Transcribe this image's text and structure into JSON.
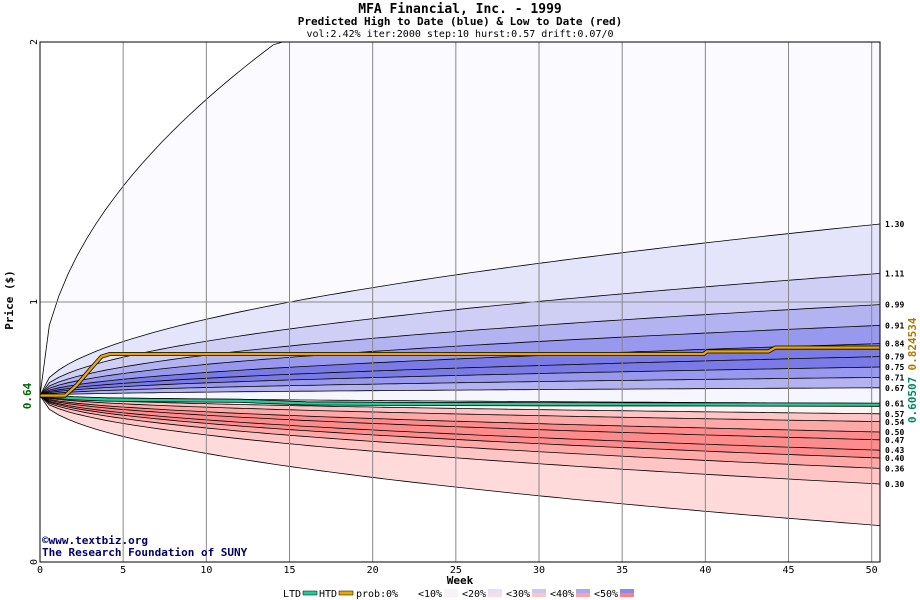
{
  "chart_data": {
    "type": "area",
    "title": "MFA Financial, Inc. - 1999",
    "subtitle": "Predicted High to Date (blue) &  Low to Date (red)",
    "params": "vol:2.42% iter:2000 step:10 hurst:0.57 drift:0.07/0",
    "xlabel": "Week",
    "ylabel": "Price ($)",
    "xlim": [
      0,
      50.5
    ],
    "ylim": [
      0,
      2
    ],
    "x_ticks": [
      0,
      5,
      10,
      15,
      20,
      25,
      30,
      35,
      40,
      45,
      50
    ],
    "y_ticks": [
      0,
      1,
      2
    ],
    "start_price_label": "0.64",
    "start_price": 0.64,
    "right_labels": [
      "1.30",
      "1.11",
      "0.99",
      "0.91",
      "0.84",
      "0.79",
      "0.75",
      "0.71",
      "0.67",
      "0.61",
      "0.57",
      "0.54",
      "0.50",
      "0.47",
      "0.43",
      "0.40",
      "0.36",
      "0.30"
    ],
    "htd_final_label": "0.824534",
    "ltd_final_label": "0.60507",
    "band_colors": [
      "#fbfbff",
      "#e4e4fa",
      "#cfcff6",
      "#b3b3f2",
      "#9898ee",
      "#7b7be8"
    ],
    "red_band_colors": [
      "#fff2f2",
      "#ffdada",
      "#ffc4c4",
      "#ffa8a8",
      "#ff8c8c"
    ],
    "htd_color": "#e8a800",
    "ltd_color": "#22cc99",
    "htd_series": [
      [
        0,
        0.64
      ],
      [
        1.5,
        0.64
      ],
      [
        2.2,
        0.68
      ],
      [
        3,
        0.74
      ],
      [
        3.7,
        0.79
      ],
      [
        4.2,
        0.8
      ],
      [
        20,
        0.8
      ],
      [
        39.9,
        0.8
      ],
      [
        40.1,
        0.81
      ],
      [
        43.8,
        0.81
      ],
      [
        44.2,
        0.824534
      ],
      [
        50.5,
        0.824534
      ]
    ],
    "ltd_series": [
      [
        0,
        0.64
      ],
      [
        2,
        0.63
      ],
      [
        4,
        0.625
      ],
      [
        8,
        0.622
      ],
      [
        12,
        0.62
      ],
      [
        14,
        0.615
      ],
      [
        16,
        0.61
      ],
      [
        22,
        0.608
      ],
      [
        30,
        0.607
      ],
      [
        40,
        0.606
      ],
      [
        50.5,
        0.60507
      ]
    ],
    "credit_line1": "©www.textbiz.org",
    "credit_line2": "The Research Foundation of SUNY",
    "legend": {
      "ltd": "LTD",
      "htd": "HTD",
      "prob": "prob:",
      "pct": [
        "0%",
        "<10%",
        "<20%",
        "<30%",
        "<40%",
        "<50%"
      ]
    }
  }
}
